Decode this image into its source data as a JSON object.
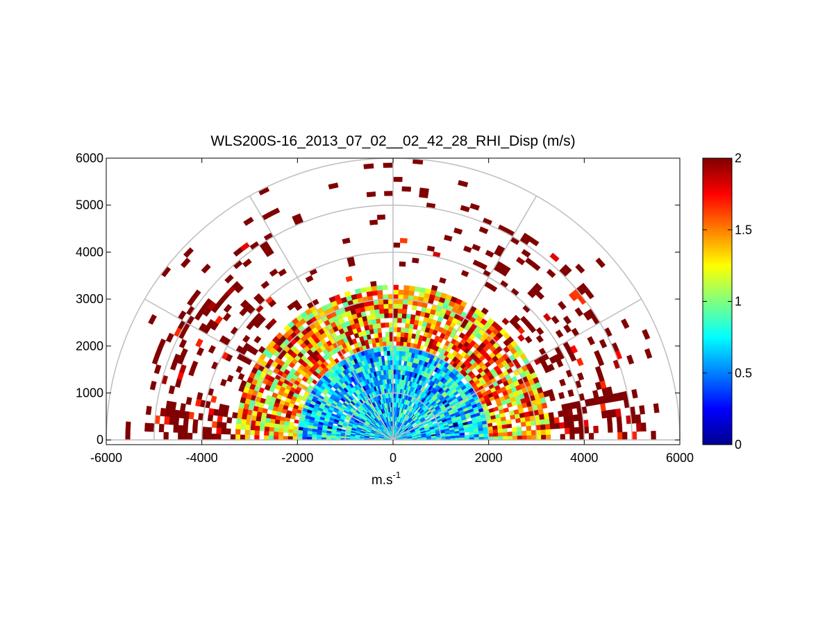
{
  "chart_data": {
    "type": "heatmap",
    "subtype": "polar-rhi-scan",
    "title": "WLS200S-16_2013_07_02__02_42_28_RHI_Disp (m/s)",
    "xlabel": "m.s",
    "xlabel_superscript": "-1",
    "ylabel": "",
    "xlim": [
      -6000,
      6000
    ],
    "ylim": [
      -100,
      6000
    ],
    "x_ticks": [
      "-6000",
      "-4000",
      "-2000",
      "0",
      "2000",
      "4000",
      "6000"
    ],
    "y_ticks": [
      "0",
      "1000",
      "2000",
      "3000",
      "4000",
      "5000",
      "6000"
    ],
    "x_tick_values": [
      -6000,
      -4000,
      -2000,
      0,
      2000,
      4000,
      6000
    ],
    "y_tick_values": [
      0,
      1000,
      2000,
      3000,
      4000,
      5000,
      6000
    ],
    "polar_rings_m": [
      1000,
      2000,
      3000,
      4000,
      5000,
      6000
    ],
    "polar_spokes_deg": [
      0,
      30,
      60,
      90,
      120,
      150,
      180
    ],
    "colorbar": {
      "min": 0,
      "max": 2,
      "colormap": "jet",
      "ticks": [
        "0",
        "0.5",
        "1",
        "1.5",
        "2"
      ],
      "tick_values": [
        0,
        0.5,
        1,
        1.5,
        2
      ]
    },
    "field_description_regions": [
      {
        "range_m": [
          0,
          2000
        ],
        "typical_value": 0.7,
        "spread": 0.35
      },
      {
        "range_m": [
          2000,
          3300
        ],
        "typical_value": 1.4,
        "spread": 0.55
      },
      {
        "range_m": [
          3300,
          5200
        ],
        "typical_value": 2.0,
        "spread": 0.25,
        "sparse": true
      },
      {
        "range_m": [
          5200,
          6000
        ],
        "typical_value": 2.0,
        "spread": 0.1,
        "very_sparse": true
      }
    ],
    "scan_elevation_range_deg": [
      0,
      180
    ],
    "gate_size_m": 100,
    "azimuth_step_deg": 2
  }
}
